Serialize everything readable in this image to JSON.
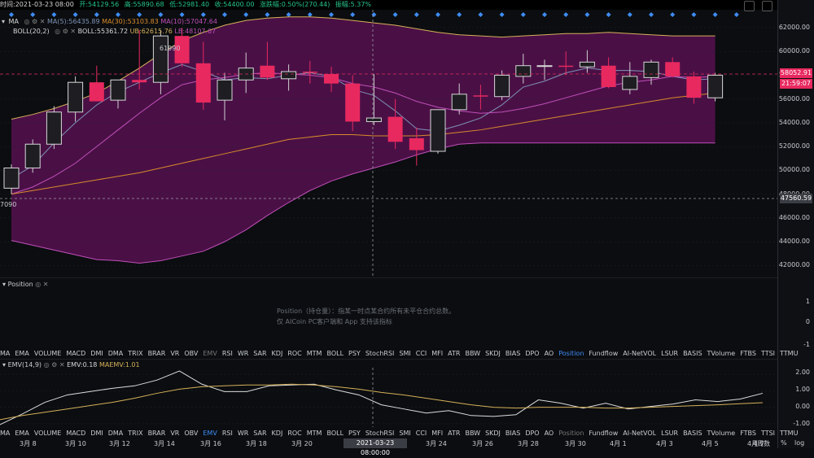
{
  "topbar": {
    "time_label": "时间:2021-03-23 08:00",
    "open_label": "开:54129.56",
    "high_label": "高:55890.68",
    "low_label": "低:52981.40",
    "close_label": "收:54400.00",
    "change_label": "涨跌幅:0.50%(270.44)",
    "amplitude_label": "振幅:5.37%"
  },
  "main_chart": {
    "ma_title": "MA",
    "ma5_label": "MA(5):56435.89",
    "ma30_label": "MA(30):53103.83",
    "ma10_label": "MA(10):57047.64",
    "boll_title": "BOLL(20,2)",
    "boll_label": "BOLL:55361.72",
    "ub_label": "UB:62615.76",
    "lb_label": "LB:48107.67",
    "left_value_label": "7090",
    "peak_label": "61990"
  },
  "price_axis": {
    "ticks": [
      "62000.00",
      "60000.00",
      "58000.00",
      "56000.00",
      "54000.00",
      "52000.00",
      "50000.00",
      "48000.00",
      "46000.00",
      "44000.00",
      "42000.00"
    ],
    "current_price": "58052.91",
    "countdown": "21:59:07",
    "crosshair_price": "47560.59"
  },
  "position_panel": {
    "title": "Position",
    "note_line1": "Position（持仓量）：指某一时点某合约所有未平仓合约总数。",
    "note_line2": "仅 AICoin PC客户端和 App 支持该指标",
    "axis_ticks": [
      "1",
      "0",
      "-1"
    ]
  },
  "indicator_tabs": [
    "MA",
    "EMA",
    "VOLUME",
    "MACD",
    "DMI",
    "DMA",
    "TRIX",
    "BRAR",
    "VR",
    "OBV",
    "EMV",
    "RSI",
    "WR",
    "SAR",
    "KDJ",
    "ROC",
    "MTM",
    "BOLL",
    "PSY",
    "StochRSI",
    "SMI",
    "CCI",
    "MFI",
    "ATR",
    "BBW",
    "SKDJ",
    "BIAS",
    "DPO",
    "AO",
    "Position",
    "Fundflow",
    "AI-NetVOL",
    "LSUR",
    "BASIS",
    "TVolume",
    "FTBS",
    "TTSI",
    "TTMU"
  ],
  "indicator_tabs_2": [
    "MA",
    "EMA",
    "VOLUME",
    "MACD",
    "DMI",
    "DMA",
    "TRIX",
    "BRAR",
    "VR",
    "OBV",
    "EMV",
    "RSI",
    "WR",
    "SAR",
    "KDJ",
    "ROC",
    "MTM",
    "BOLL",
    "PSY",
    "StochRSI",
    "SMI",
    "CCI",
    "MFI",
    "ATR",
    "BBW",
    "SKDJ",
    "BIAS",
    "DPO",
    "AO",
    "Position",
    "Fundflow",
    "AI-NetVOL",
    "LSUR",
    "BASIS",
    "TVolume",
    "FTBS",
    "TTSI",
    "TTMU"
  ],
  "emv_panel": {
    "title": "EMV(14,9)",
    "emv_label": "EMV:0.18",
    "maemv_label": "MAEMV:1.01",
    "axis_ticks": [
      "2.00",
      "1.00",
      "0.00",
      "-1.00"
    ]
  },
  "x_axis": {
    "ticks": [
      "3月 8",
      "3月 10",
      "3月 12",
      "3月 14",
      "3月 16",
      "3月 18",
      "3月 20",
      "3月 24",
      "3月 26",
      "3月 28",
      "3月 30",
      "4月 1",
      "4月 3",
      "4月 5",
      "4月 7",
      "4周数"
    ],
    "crosshair_time": "2021-03-23 08:00:00",
    "percent_label": "%",
    "log_label": "log"
  },
  "colors": {
    "up": "#26c68a",
    "down": "#e8295f",
    "boll_fill": "#4a1046",
    "ma5": "#7f93b6",
    "ma10": "#c04fb8",
    "ma30": "#d88a2a",
    "ub": "#d6b15a",
    "accent": "#3f8df5"
  },
  "chart_data": [
    {
      "type": "candlestick",
      "title": "",
      "ylim": [
        41000,
        63500
      ],
      "candles": [
        {
          "o": 48500,
          "h": 50500,
          "l": 48000,
          "c": 50200
        },
        {
          "o": 50200,
          "h": 52600,
          "l": 49800,
          "c": 52200
        },
        {
          "o": 52200,
          "h": 55400,
          "l": 51800,
          "c": 54900
        },
        {
          "o": 54900,
          "h": 57900,
          "l": 54100,
          "c": 57400
        },
        {
          "o": 57400,
          "h": 58800,
          "l": 55800,
          "c": 55800
        },
        {
          "o": 55900,
          "h": 57600,
          "l": 55200,
          "c": 57600
        },
        {
          "o": 57600,
          "h": 61800,
          "l": 56800,
          "c": 57400
        },
        {
          "o": 57400,
          "h": 61800,
          "l": 56400,
          "c": 61300
        },
        {
          "o": 61300,
          "h": 61990,
          "l": 58700,
          "c": 59000
        },
        {
          "o": 59000,
          "h": 60800,
          "l": 55100,
          "c": 55700
        },
        {
          "o": 55900,
          "h": 58200,
          "l": 54200,
          "c": 57600
        },
        {
          "o": 57600,
          "h": 59900,
          "l": 56500,
          "c": 58600
        },
        {
          "o": 58800,
          "h": 60800,
          "l": 57600,
          "c": 57800
        },
        {
          "o": 57700,
          "h": 58900,
          "l": 56700,
          "c": 58300
        },
        {
          "o": 58300,
          "h": 59200,
          "l": 57300,
          "c": 58200
        },
        {
          "o": 58100,
          "h": 58700,
          "l": 56600,
          "c": 57300
        },
        {
          "o": 57300,
          "h": 58000,
          "l": 53300,
          "c": 54100
        },
        {
          "o": 54100,
          "h": 58100,
          "l": 53800,
          "c": 54400
        },
        {
          "o": 54500,
          "h": 56000,
          "l": 51800,
          "c": 52400
        },
        {
          "o": 52700,
          "h": 53600,
          "l": 50400,
          "c": 51700
        },
        {
          "o": 51600,
          "h": 55100,
          "l": 51400,
          "c": 55100
        },
        {
          "o": 55100,
          "h": 57300,
          "l": 54700,
          "c": 56400
        },
        {
          "o": 56300,
          "h": 57200,
          "l": 55100,
          "c": 56200
        },
        {
          "o": 56200,
          "h": 58400,
          "l": 55900,
          "c": 58000
        },
        {
          "o": 57900,
          "h": 59800,
          "l": 57300,
          "c": 58800
        },
        {
          "o": 58800,
          "h": 59300,
          "l": 57600,
          "c": 58800
        },
        {
          "o": 58800,
          "h": 60000,
          "l": 58000,
          "c": 58700
        },
        {
          "o": 58700,
          "h": 60100,
          "l": 58200,
          "c": 59100
        },
        {
          "o": 58800,
          "h": 59500,
          "l": 56900,
          "c": 57000
        },
        {
          "o": 56800,
          "h": 59100,
          "l": 56400,
          "c": 57900
        },
        {
          "o": 57800,
          "h": 59300,
          "l": 57200,
          "c": 59100
        },
        {
          "o": 59100,
          "h": 59500,
          "l": 57800,
          "c": 57900
        },
        {
          "o": 57900,
          "h": 58300,
          "l": 55600,
          "c": 56100
        },
        {
          "o": 56100,
          "h": 58200,
          "l": 55800,
          "c": 58000
        }
      ],
      "series": [
        {
          "name": "UB",
          "values": [
            54300,
            54700,
            55200,
            55800,
            56500,
            57500,
            58600,
            59800,
            60900,
            61600,
            62200,
            62600,
            62800,
            62900,
            62900,
            62800,
            62600,
            62400,
            62200,
            61900,
            61600,
            61400,
            61300,
            61200,
            61300,
            61400,
            61500,
            61500,
            61600,
            61500,
            61400,
            61300,
            61300,
            61300
          ]
        },
        {
          "name": "LB",
          "values": [
            44100,
            43700,
            43300,
            42900,
            42500,
            42400,
            42200,
            42400,
            42800,
            43200,
            44000,
            45000,
            46200,
            47300,
            48300,
            49100,
            49700,
            50200,
            50700,
            51300,
            51800,
            52200,
            52300,
            52300,
            52300,
            52300,
            52300,
            52300,
            52300,
            52300,
            52300,
            52300,
            52300,
            52300
          ]
        },
        {
          "name": "MA5",
          "values": [
            49300,
            50400,
            52300,
            54000,
            55500,
            56600,
            57400,
            58200,
            58900,
            58300,
            57600,
            57800,
            57700,
            58000,
            58200,
            57900,
            56800,
            56300,
            55000,
            53500,
            53300,
            53800,
            54400,
            55500,
            57000,
            57500,
            58200,
            58600,
            58400,
            58400,
            58300,
            57900,
            57600,
            57700
          ]
        },
        {
          "name": "MA10",
          "values": [
            48000,
            48600,
            49500,
            50600,
            52000,
            53400,
            54800,
            56100,
            57200,
            57600,
            57800,
            58100,
            58200,
            58100,
            58000,
            57800,
            57300,
            57000,
            56500,
            55800,
            55300,
            55000,
            54800,
            54900,
            55200,
            55600,
            56100,
            56600,
            57100,
            57400,
            57600,
            57900,
            57800,
            57900
          ]
        },
        {
          "name": "MA30",
          "values": [
            48000,
            48300,
            48600,
            48900,
            49200,
            49500,
            49800,
            50200,
            50600,
            51000,
            51400,
            51800,
            52200,
            52600,
            52800,
            53000,
            53000,
            52900,
            52900,
            52900,
            53000,
            53200,
            53400,
            53700,
            54000,
            54300,
            54600,
            54900,
            55200,
            55500,
            55800,
            56100,
            56300,
            56500
          ]
        }
      ]
    },
    {
      "type": "line",
      "title": "EMV(14,9)",
      "ylim": [
        -1.2,
        2.4
      ],
      "series": [
        {
          "name": "EMV",
          "values": [
            -1.05,
            -0.4,
            0.3,
            0.75,
            0.95,
            1.15,
            1.3,
            1.65,
            2.2,
            1.4,
            0.95,
            0.95,
            1.3,
            1.35,
            1.4,
            1.05,
            0.75,
            0.15,
            -0.1,
            -0.35,
            -0.2,
            -0.5,
            -0.55,
            -0.45,
            0.45,
            0.25,
            -0.05,
            0.25,
            -0.1,
            0.05,
            0.2,
            0.45,
            0.35,
            0.5,
            0.85
          ]
        },
        {
          "name": "MAEMV",
          "values": [
            -0.75,
            -0.5,
            -0.3,
            -0.1,
            0.1,
            0.3,
            0.55,
            0.85,
            1.1,
            1.25,
            1.3,
            1.35,
            1.35,
            1.4,
            1.35,
            1.25,
            1.1,
            0.9,
            0.75,
            0.55,
            0.35,
            0.15,
            0.0,
            -0.05,
            0.0,
            0.0,
            0.0,
            -0.05,
            -0.05,
            0.0,
            0.05,
            0.1,
            0.15,
            0.22,
            0.28
          ]
        }
      ]
    }
  ]
}
